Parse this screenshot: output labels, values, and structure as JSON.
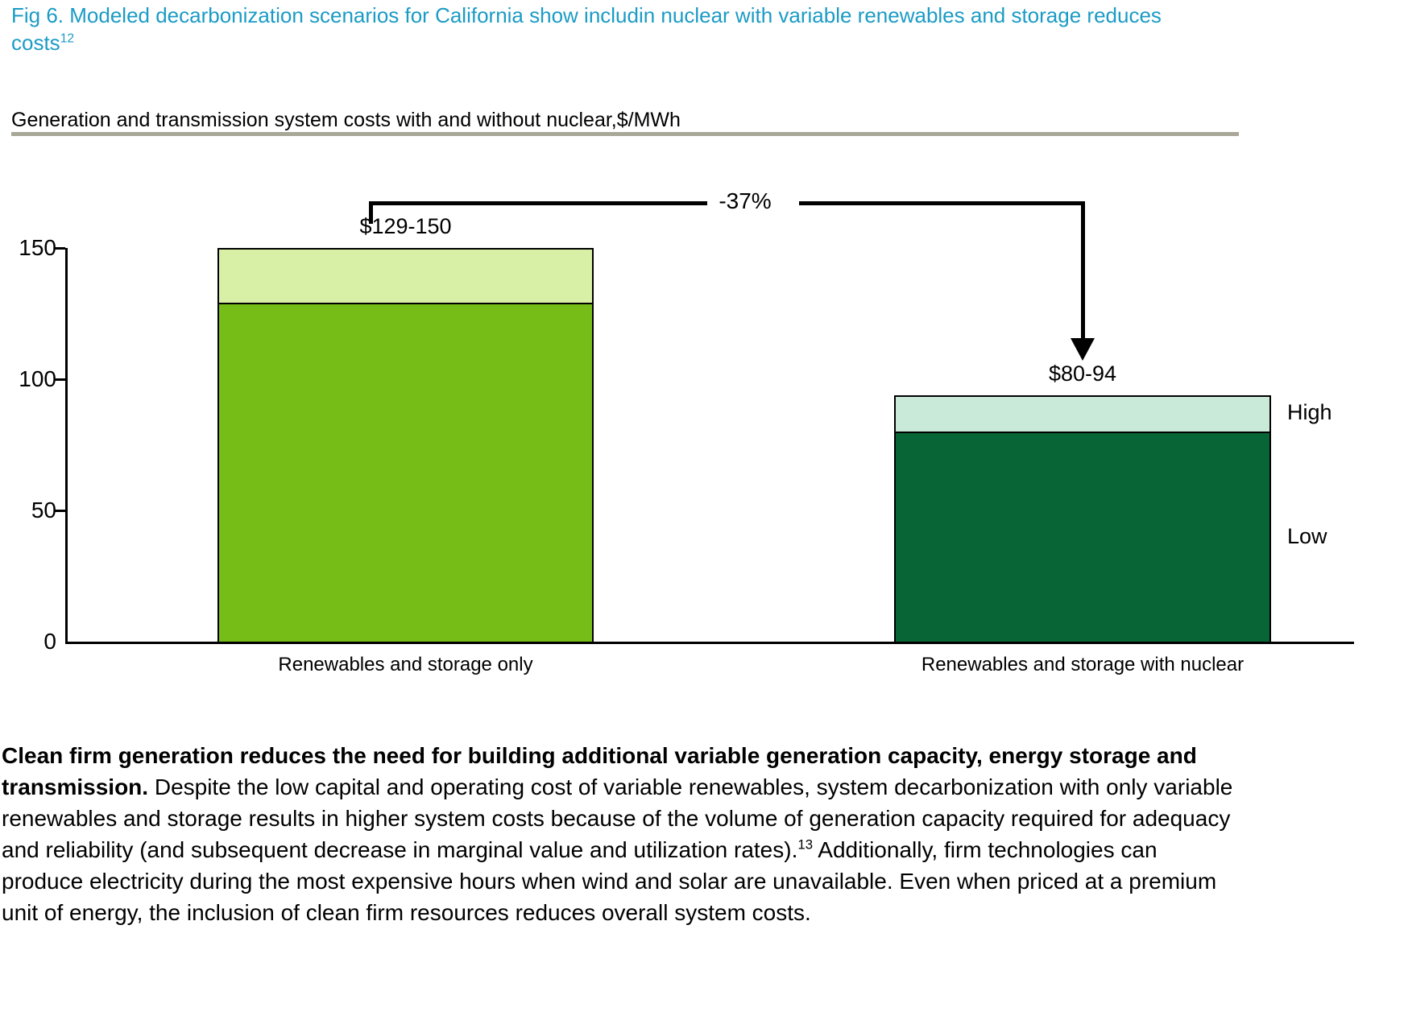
{
  "figure": {
    "title": "Fig 6. Modeled decarbonization scenarios for California show includin nuclear with variable renewables and storage reduces costs",
    "title_superscript": "12",
    "title_color": "#1b9bc5",
    "header_rule_color": "#a8a798"
  },
  "chart_data": {
    "type": "bar",
    "subtype": "stacked range bars (low value with high-low band on top)",
    "title": "Generation and transmission system costs with and without nuclear,$/MWh",
    "categories": [
      "Renewables and storage only",
      "Renewables and storage with nuclear"
    ],
    "series": [
      {
        "name": "Low",
        "values": [
          129,
          80
        ],
        "colors": [
          "#76bd17",
          "#086636"
        ]
      },
      {
        "name": "High",
        "values": [
          150,
          94
        ],
        "colors": [
          "#d7f0a5",
          "#c9ead8"
        ]
      }
    ],
    "bar_value_labels": [
      "$129-150",
      "$80-94"
    ],
    "annotation": {
      "text": "-37%",
      "description": "elbow arrow from first bar down to second bar"
    },
    "range_labels": {
      "high": "High",
      "low": "Low"
    },
    "xlabel": "",
    "ylabel": "$/MWh",
    "ylim": [
      0,
      150
    ],
    "yticks": [
      0,
      50,
      100,
      150
    ],
    "grid": false,
    "legend_position": "right of second bar",
    "axis_color": "#000000"
  },
  "body": {
    "lead_bold": "Clean firm generation reduces the need for building additional variable generation capacity, energy storage and transmission.",
    "text": " Despite the low capital and operating cost of variable renewables, system decarbonization with only variable renewables and storage results in higher system costs because of the volume of generation capacity required for adequacy and reliability (and subsequent decrease in marginal value and utilization rates).",
    "footnote_marker": "13",
    "text_after": " Additionally, firm technologies can produce electricity during the most expensive hours when wind and solar are unavailable. Even when priced at a premium unit of energy, the inclusion of clean firm resources reduces overall system costs."
  }
}
